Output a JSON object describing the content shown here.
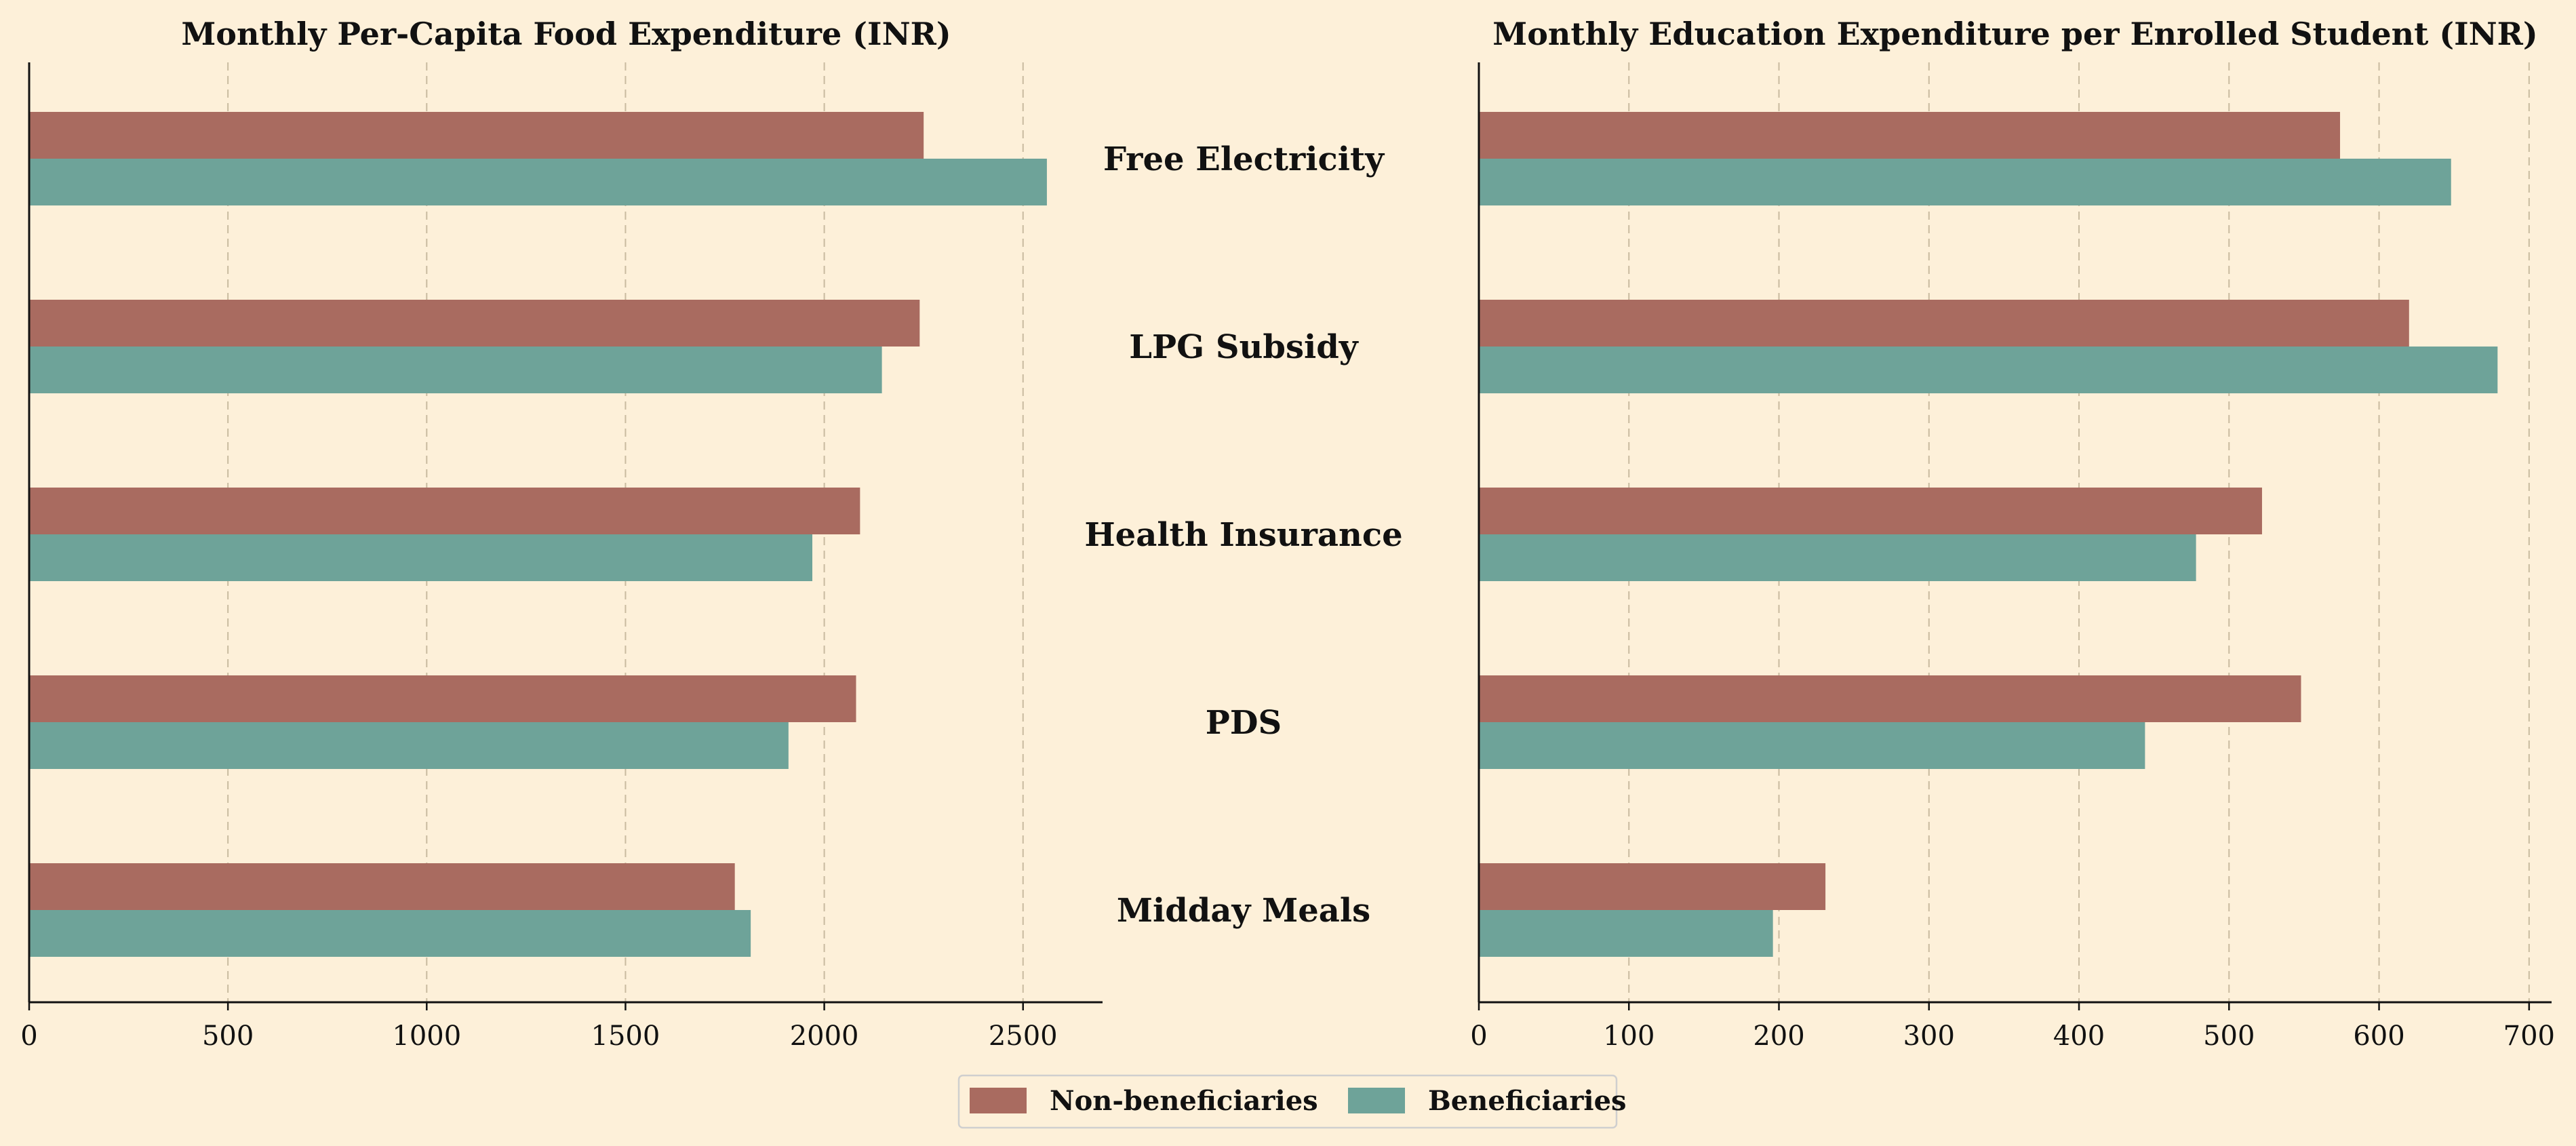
{
  "chart_data": {
    "type": "bar",
    "orientation": "horizontal",
    "categories": [
      "Free Electricity",
      "LPG Subsidy",
      "Health Insurance",
      "PDS",
      "Midday Meals"
    ],
    "legend": {
      "placement": "bottom-center",
      "entries": [
        {
          "name": "Non-beneficiaries",
          "color": "#a96b60"
        },
        {
          "name": "Beneficiaries",
          "color": "#6ea399"
        }
      ]
    },
    "panels": [
      {
        "title": "Monthly Per-Capita Food Expenditure (INR)",
        "xlim": [
          0,
          2700
        ],
        "ticks": [
          0,
          500,
          1000,
          1500,
          2000,
          2500
        ],
        "grid": true,
        "series": [
          {
            "name": "Non-beneficiaries",
            "values": [
              2250,
              2240,
              2090,
              2080,
              1775
            ]
          },
          {
            "name": "Beneficiaries",
            "values": [
              2560,
              2145,
              1970,
              1910,
              1815
            ]
          }
        ]
      },
      {
        "title": "Monthly Education Expenditure per Enrolled Student (INR)",
        "xlim": [
          0,
          715
        ],
        "ticks": [
          0,
          100,
          200,
          300,
          400,
          500,
          600,
          700
        ],
        "grid": true,
        "series": [
          {
            "name": "Non-beneficiaries",
            "values": [
              574,
              620,
              522,
              548,
              231
            ]
          },
          {
            "name": "Beneficiaries",
            "values": [
              648,
              679,
              478,
              444,
              196
            ]
          }
        ]
      }
    ]
  }
}
